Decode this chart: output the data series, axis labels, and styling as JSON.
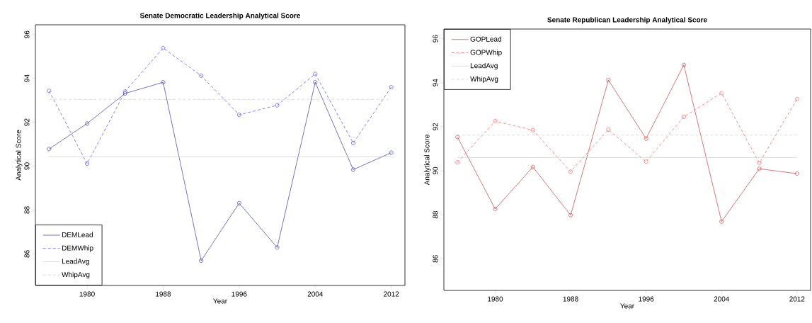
{
  "chart_data": [
    {
      "type": "line",
      "title": "Senate Democratic Leadership Analytical Score",
      "xlabel": "Year",
      "ylabel": "Analytical Score",
      "x": [
        1976,
        1980,
        1984,
        1988,
        1992,
        1996,
        2000,
        2004,
        2008,
        2012
      ],
      "xlim": [
        1974.56,
        2013.44
      ],
      "ylim": [
        84.56,
        96.44
      ],
      "xticks": [
        1980,
        1988,
        1996,
        2004,
        2012
      ],
      "yticks": [
        86,
        88,
        90,
        92,
        94,
        96
      ],
      "legend": "bottom left",
      "marker": "circle",
      "series": [
        {
          "name": "DEMLead",
          "color": "#3a3aa8",
          "line_style": "solid",
          "values": [
            90.78,
            91.94,
            93.31,
            93.82,
            85.69,
            88.31,
            86.29,
            93.82,
            89.84,
            90.61
          ]
        },
        {
          "name": "DEMWhip",
          "color": "#4a4aff",
          "line_style": "dashed",
          "values": [
            93.43,
            90.11,
            93.4,
            95.38,
            94.12,
            92.34,
            92.77,
            94.2,
            91.05,
            93.6
          ]
        }
      ],
      "ref_lines": [
        {
          "axis": "y",
          "value": 90.43,
          "label": "LeadAvg",
          "color": "#cccccc",
          "line_style": "solid"
        },
        {
          "axis": "y",
          "value": 93.04,
          "label": "WhipAvg",
          "color": "#cccccc",
          "line_style": "dashed"
        }
      ]
    },
    {
      "type": "line",
      "title": "Senate Republican Leadership Analytical Score",
      "xlabel": "Year",
      "ylabel": "Analytical Score",
      "x": [
        1976,
        1980,
        1984,
        1988,
        1992,
        1996,
        2000,
        2004,
        2008,
        2012
      ],
      "xlim": [
        1974.56,
        2013.44
      ],
      "ylim": [
        84.56,
        96.44
      ],
      "xticks": [
        1980,
        1988,
        1996,
        2004,
        2012
      ],
      "yticks": [
        86,
        88,
        90,
        92,
        94,
        96
      ],
      "legend": "top left",
      "marker": "circle",
      "series": [
        {
          "name": "GOPLead",
          "color": "#c83c3c",
          "line_style": "solid",
          "values": [
            91.53,
            88.26,
            90.17,
            87.98,
            94.12,
            91.46,
            94.81,
            87.69,
            90.09,
            89.87
          ]
        },
        {
          "name": "GOPWhip",
          "color": "#ff5a5a",
          "line_style": "dashed",
          "values": [
            90.38,
            92.26,
            91.84,
            89.96,
            91.87,
            90.41,
            92.45,
            93.53,
            90.35,
            93.26
          ]
        }
      ],
      "ref_lines": [
        {
          "axis": "y",
          "value": 90.6,
          "label": "LeadAvg",
          "color": "#cccccc",
          "line_style": "solid"
        },
        {
          "axis": "y",
          "value": 91.62,
          "label": "WhipAvg",
          "color": "#cccccc",
          "line_style": "dashed"
        }
      ]
    }
  ]
}
